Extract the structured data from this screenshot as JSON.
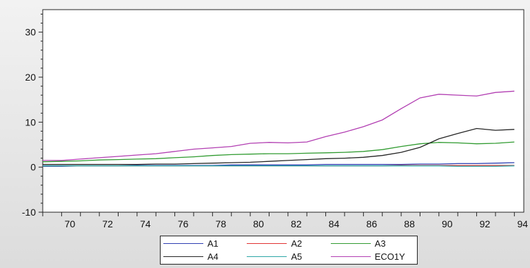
{
  "chart_data": {
    "type": "line",
    "title": "",
    "xlabel": "",
    "ylabel": "",
    "xlim": [
      69,
      94.5
    ],
    "ylim": [
      -10,
      35
    ],
    "x_ticks": [
      70,
      72,
      74,
      76,
      78,
      80,
      82,
      84,
      86,
      88,
      90,
      92,
      94
    ],
    "y_ticks": [
      -10,
      0,
      10,
      20,
      30
    ],
    "grid": false,
    "legend": "bottom-center",
    "x": [
      69,
      70,
      71,
      72,
      73,
      74,
      75,
      76,
      77,
      78,
      79,
      80,
      81,
      82,
      83,
      84,
      85,
      86,
      87,
      88,
      89,
      90,
      91,
      92,
      93,
      94
    ],
    "series": [
      {
        "name": "A1",
        "color": "#2b3bb0",
        "values": [
          0.2,
          0.2,
          0.3,
          0.3,
          0.3,
          0.4,
          0.4,
          0.4,
          0.4,
          0.4,
          0.5,
          0.5,
          0.5,
          0.5,
          0.5,
          0.6,
          0.6,
          0.6,
          0.6,
          0.6,
          0.7,
          0.7,
          0.8,
          0.8,
          0.9,
          1.0
        ]
      },
      {
        "name": "A2",
        "color": "#e03030",
        "values": [
          0.3,
          0.3,
          0.3,
          0.3,
          0.3,
          0.3,
          0.3,
          0.3,
          0.3,
          0.3,
          0.3,
          0.3,
          0.3,
          0.3,
          0.3,
          0.3,
          0.3,
          0.3,
          0.3,
          0.4,
          0.4,
          0.4,
          0.4,
          0.4,
          0.4,
          0.4
        ]
      },
      {
        "name": "A3",
        "color": "#2e9a2e",
        "values": [
          1.2,
          1.3,
          1.4,
          1.6,
          1.7,
          1.8,
          1.9,
          2.1,
          2.3,
          2.6,
          2.8,
          2.9,
          3.0,
          3.0,
          3.1,
          3.2,
          3.3,
          3.5,
          3.9,
          4.6,
          5.2,
          5.5,
          5.4,
          5.2,
          5.3,
          5.6
        ]
      },
      {
        "name": "A4",
        "color": "#222222",
        "values": [
          0.6,
          0.6,
          0.6,
          0.6,
          0.6,
          0.6,
          0.7,
          0.7,
          0.8,
          0.9,
          1.0,
          1.1,
          1.3,
          1.5,
          1.7,
          1.9,
          2.0,
          2.2,
          2.6,
          3.3,
          4.4,
          6.3,
          7.5,
          8.6,
          8.2,
          8.4
        ]
      },
      {
        "name": "A5",
        "color": "#2aa6a6",
        "values": [
          0.3,
          0.3,
          0.3,
          0.3,
          0.3,
          0.3,
          0.3,
          0.3,
          0.3,
          0.3,
          0.3,
          0.3,
          0.3,
          0.3,
          0.3,
          0.3,
          0.3,
          0.3,
          0.3,
          0.3,
          0.3,
          0.3,
          0.2,
          0.2,
          0.2,
          0.3
        ]
      },
      {
        "name": "ECO1Y",
        "color": "#b13cb1",
        "values": [
          1.5,
          1.5,
          1.8,
          2.1,
          2.4,
          2.7,
          3.0,
          3.5,
          4.0,
          4.3,
          4.6,
          5.3,
          5.5,
          5.4,
          5.6,
          6.8,
          7.8,
          9.0,
          10.5,
          13.0,
          15.4,
          16.2,
          16.0,
          15.8,
          16.6,
          16.9
        ]
      }
    ]
  }
}
